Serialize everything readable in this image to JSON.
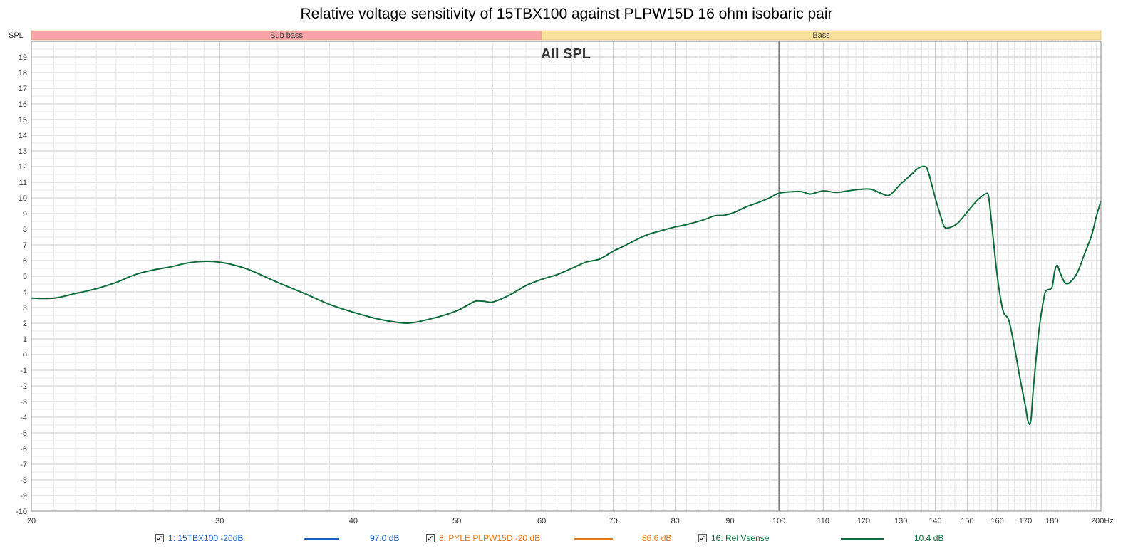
{
  "title": "Relative voltage sensitivity of 15TBX100 against PLPW15D 16 ohm isobaric pair",
  "chart_data": {
    "type": "line",
    "title": "Relative voltage sensitivity of 15TBX100 against PLPW15D 16 ohm isobaric pair",
    "overlay_label": "All SPL",
    "ylabel": "SPL",
    "x_unit": "Hz",
    "x_scale": "log",
    "xlim": [
      20,
      200
    ],
    "ylim": [
      -10,
      20
    ],
    "x_ticks": [
      20,
      30,
      40,
      50,
      60,
      70,
      80,
      90,
      100,
      110,
      120,
      130,
      140,
      150,
      160,
      170,
      180,
      200
    ],
    "x_tick_labels": [
      "20",
      "30",
      "40",
      "50",
      "60",
      "70",
      "80",
      "90",
      "100",
      "110",
      "120",
      "130",
      "140",
      "150",
      "160",
      "170",
      "180",
      "200Hz"
    ],
    "y_ticks": [
      -10,
      -9,
      -8,
      -7,
      -6,
      -5,
      -4,
      -3,
      -2,
      -1,
      0,
      1,
      2,
      3,
      4,
      5,
      6,
      7,
      8,
      9,
      10,
      11,
      12,
      13,
      14,
      15,
      16,
      17,
      18,
      19
    ],
    "bands": [
      {
        "label": "Sub bass",
        "from": 20,
        "to": 60,
        "color": "#f7a3a8"
      },
      {
        "label": "Bass",
        "from": 60,
        "to": 200,
        "color": "#f9e29c"
      }
    ],
    "cursor_x": 100,
    "grid": true,
    "series": [
      {
        "name": "16: Rel Vsense",
        "color": "#0e6b3a",
        "points": [
          [
            20,
            3.6
          ],
          [
            21,
            3.6
          ],
          [
            22,
            3.9
          ],
          [
            23,
            4.2
          ],
          [
            24,
            4.6
          ],
          [
            25,
            5.1
          ],
          [
            26,
            5.4
          ],
          [
            27,
            5.6
          ],
          [
            28,
            5.85
          ],
          [
            29,
            5.95
          ],
          [
            30,
            5.9
          ],
          [
            31,
            5.7
          ],
          [
            32,
            5.4
          ],
          [
            34,
            4.6
          ],
          [
            36,
            3.9
          ],
          [
            38,
            3.2
          ],
          [
            40,
            2.7
          ],
          [
            42,
            2.3
          ],
          [
            44,
            2.05
          ],
          [
            45,
            2.0
          ],
          [
            46,
            2.1
          ],
          [
            48,
            2.4
          ],
          [
            50,
            2.8
          ],
          [
            51,
            3.1
          ],
          [
            52,
            3.4
          ],
          [
            53,
            3.4
          ],
          [
            54,
            3.35
          ],
          [
            56,
            3.8
          ],
          [
            58,
            4.4
          ],
          [
            60,
            4.8
          ],
          [
            62,
            5.1
          ],
          [
            64,
            5.5
          ],
          [
            66,
            5.9
          ],
          [
            68,
            6.1
          ],
          [
            70,
            6.6
          ],
          [
            72,
            7.0
          ],
          [
            75,
            7.6
          ],
          [
            78,
            7.95
          ],
          [
            80,
            8.15
          ],
          [
            82,
            8.3
          ],
          [
            85,
            8.6
          ],
          [
            87,
            8.85
          ],
          [
            89,
            8.9
          ],
          [
            91,
            9.1
          ],
          [
            93,
            9.4
          ],
          [
            96,
            9.75
          ],
          [
            98,
            10.0
          ],
          [
            100,
            10.3
          ],
          [
            103,
            10.4
          ],
          [
            105,
            10.4
          ],
          [
            107,
            10.25
          ],
          [
            110,
            10.45
          ],
          [
            113,
            10.35
          ],
          [
            116,
            10.45
          ],
          [
            119,
            10.55
          ],
          [
            122,
            10.55
          ],
          [
            125,
            10.25
          ],
          [
            127,
            10.2
          ],
          [
            130,
            10.9
          ],
          [
            133,
            11.5
          ],
          [
            135,
            11.9
          ],
          [
            137,
            12.0
          ],
          [
            138,
            11.6
          ],
          [
            140,
            10.0
          ],
          [
            142,
            8.6
          ],
          [
            143,
            8.1
          ],
          [
            145,
            8.15
          ],
          [
            147,
            8.4
          ],
          [
            150,
            9.1
          ],
          [
            153,
            9.8
          ],
          [
            156,
            10.25
          ],
          [
            157,
            10.1
          ],
          [
            158,
            8.5
          ],
          [
            160,
            5.0
          ],
          [
            162,
            2.8
          ],
          [
            164,
            2.2
          ],
          [
            166,
            0.5
          ],
          [
            168,
            -1.5
          ],
          [
            170,
            -3.3
          ],
          [
            171,
            -4.3
          ],
          [
            172,
            -4.2
          ],
          [
            173,
            -2.0
          ],
          [
            175,
            1.5
          ],
          [
            177,
            3.7
          ],
          [
            178,
            4.1
          ],
          [
            180,
            4.3
          ],
          [
            181,
            5.3
          ],
          [
            182,
            5.7
          ],
          [
            183,
            5.3
          ],
          [
            185,
            4.6
          ],
          [
            187,
            4.6
          ],
          [
            190,
            5.2
          ],
          [
            193,
            6.4
          ],
          [
            196,
            7.6
          ],
          [
            198,
            8.8
          ],
          [
            200,
            9.8
          ]
        ]
      }
    ]
  },
  "legend": [
    {
      "label": "1: 15TBX100 -20dB",
      "value": "97.0 dB",
      "color": "#1a5fc0",
      "text_color": "#1a5fc0",
      "checked": "✓"
    },
    {
      "label": "8: PYLE PLPW15D -20 dB",
      "value": "86.6 dB",
      "color": "#e07818",
      "text_color": "#e07818",
      "checked": "✓"
    },
    {
      "label": "16: Rel Vsense",
      "value": "10.4 dB",
      "color": "#0e6b3a",
      "text_color": "#0e6b3a",
      "checked": "✓"
    }
  ]
}
